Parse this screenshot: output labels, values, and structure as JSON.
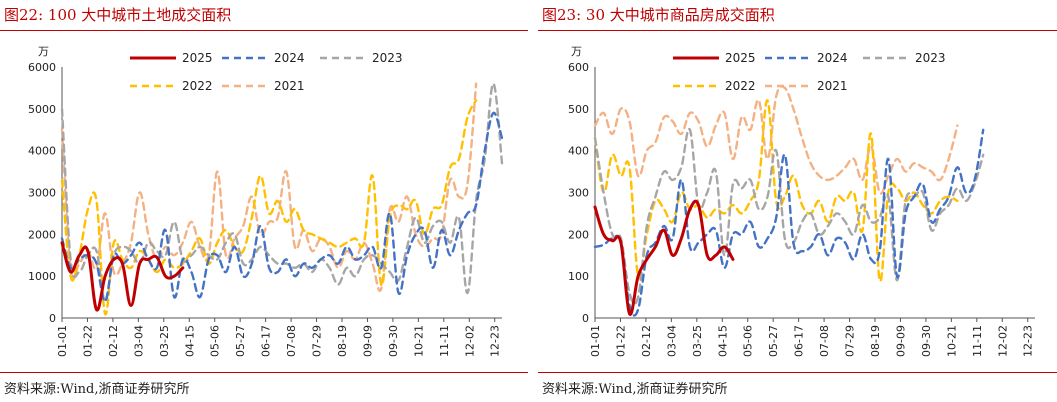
{
  "charts": [
    {
      "title": "图22:   100 大中城市土地成交面积",
      "source": "资料来源:Wind,浙商证券研究所"
    },
    {
      "title": "图23:   30 大中城市商品房成交面积",
      "source": "资料来源:Wind,浙商证券研究所"
    }
  ],
  "chart_data": [
    {
      "type": "line",
      "unit_label": "万",
      "ylim": [
        0,
        6000
      ],
      "yticks": [
        0,
        1000,
        2000,
        3000,
        4000,
        5000,
        6000
      ],
      "x_ticks": [
        "01-01",
        "01-22",
        "02-12",
        "03-04",
        "03-25",
        "04-15",
        "05-06",
        "05-27",
        "06-17",
        "07-08",
        "07-29",
        "08-19",
        "09-09",
        "09-30",
        "10-21",
        "11-11",
        "12-02",
        "12-23"
      ],
      "x_range_days": [
        0,
        363
      ],
      "legend_position": "top-center",
      "series": [
        {
          "name": "2025",
          "color": "#c00000",
          "dash": "",
          "width": 3,
          "values": [
            1800,
            1100,
            1500,
            1600,
            200,
            1000,
            1400,
            1300,
            300,
            1300,
            1400,
            1450,
            1000,
            1000,
            1200
          ]
        },
        {
          "name": "2024",
          "color": "#4472c4",
          "dash": "7,5",
          "width": 2.4,
          "values": [
            1900,
            1200,
            1400,
            1500,
            1300,
            400,
            1500,
            1300,
            1500,
            1800,
            1400,
            1200,
            2100,
            500,
            1400,
            1100,
            500,
            1400,
            1500,
            1100,
            1700,
            1000,
            1300,
            2200,
            1200,
            1100,
            1400,
            1000,
            1300,
            1200,
            1400,
            1500,
            1300,
            1700,
            1400,
            1500,
            1700,
            1200,
            2500,
            600,
            1500,
            2000,
            2100,
            1200,
            2100,
            1500,
            2100,
            2500,
            2700,
            4000,
            4900,
            4300
          ]
        },
        {
          "name": "2023",
          "color": "#a6a6a6",
          "dash": "7,5",
          "width": 2.4,
          "values": [
            5000,
            1400,
            1100,
            1500,
            1600,
            400,
            1500,
            1700,
            1600,
            1300,
            1800,
            1600,
            1500,
            2300,
            1400,
            1500,
            1700,
            1500,
            1400,
            1800,
            2000,
            1300,
            1400,
            1700,
            1500,
            1300,
            1300,
            1200,
            1300,
            1100,
            1400,
            1200,
            800,
            1200,
            1000,
            1400,
            1500,
            1300,
            1100,
            900,
            1700,
            2400,
            1800,
            2200,
            2300,
            1800,
            2400,
            600,
            2800,
            3800,
            5600,
            3700
          ]
        },
        {
          "name": "2022",
          "color": "#ffc000",
          "dash": "7,5",
          "width": 2.4,
          "values": [
            3300,
            1000,
            1500,
            2600,
            2800,
            100,
            1800,
            1400,
            1200,
            1600,
            1400,
            1100,
            1400,
            1200,
            1300,
            1600,
            1900,
            1300,
            1800,
            2100,
            1700,
            1600,
            2400,
            3400,
            2500,
            2800,
            2300,
            2600,
            2100,
            2000,
            1900,
            1800,
            1700,
            1800,
            1900,
            1800,
            3400,
            800,
            2400,
            2700,
            2600,
            2800,
            2000,
            2600,
            2700,
            3600,
            3800,
            4800,
            5200
          ]
        },
        {
          "name": "2021",
          "color": "#f4b183",
          "dash": "7,5",
          "width": 2.4,
          "values": [
            4500,
            1200,
            1300,
            1600,
            1200,
            2500,
            1100,
            1300,
            1800,
            3000,
            2000,
            1400,
            1700,
            1500,
            1800,
            2300,
            1700,
            1500,
            3500,
            1500,
            1900,
            2200,
            2900,
            2000,
            2300,
            2400,
            3500,
            1700,
            2100,
            1600,
            1900,
            1700,
            1200,
            1600,
            1400,
            1800,
            1300,
            700,
            2600,
            2300,
            2900,
            2000,
            1700,
            1900,
            2000,
            3300,
            2900,
            3200,
            5600
          ]
        }
      ]
    },
    {
      "type": "line",
      "unit_label": "万",
      "ylim": [
        0,
        600
      ],
      "yticks": [
        0,
        100,
        200,
        300,
        400,
        500,
        600
      ],
      "x_ticks": [
        "01-01",
        "01-22",
        "02-12",
        "03-04",
        "03-25",
        "04-15",
        "05-06",
        "05-27",
        "06-17",
        "07-08",
        "07-29",
        "08-19",
        "09-09",
        "09-30",
        "10-21",
        "11-11",
        "12-02",
        "12-23"
      ],
      "x_range_days": [
        0,
        363
      ],
      "legend_position": "top-center",
      "series": [
        {
          "name": "2025",
          "color": "#c00000",
          "dash": "",
          "width": 3,
          "values": [
            265,
            200,
            185,
            180,
            10,
            100,
            140,
            170,
            210,
            150,
            190,
            260,
            270,
            150,
            150,
            170,
            140
          ]
        },
        {
          "name": "2024",
          "color": "#4472c4",
          "dash": "7,5",
          "width": 2.4,
          "values": [
            170,
            175,
            190,
            180,
            30,
            20,
            150,
            180,
            220,
            190,
            330,
            170,
            180,
            200,
            210,
            120,
            200,
            200,
            230,
            170,
            190,
            240,
            390,
            180,
            160,
            170,
            200,
            150,
            190,
            180,
            140,
            200,
            140,
            160,
            380,
            100,
            250,
            290,
            320,
            230,
            260,
            290,
            360,
            300,
            330,
            450
          ]
        },
        {
          "name": "2023",
          "color": "#a6a6a6",
          "dash": "7,5",
          "width": 2.4,
          "values": [
            430,
            300,
            200,
            190,
            60,
            50,
            220,
            290,
            350,
            330,
            360,
            450,
            270,
            300,
            350,
            150,
            320,
            310,
            330,
            260,
            290,
            400,
            190,
            180,
            230,
            250,
            200,
            220,
            250,
            230,
            200,
            270,
            230,
            240,
            290,
            90,
            280,
            290,
            300,
            210,
            250,
            270,
            310,
            280,
            320,
            390
          ]
        },
        {
          "name": "2022",
          "color": "#ffc000",
          "dash": "7,5",
          "width": 2.4,
          "values": [
            430,
            300,
            390,
            340,
            360,
            100,
            200,
            280,
            260,
            230,
            300,
            260,
            270,
            240,
            260,
            250,
            270,
            250,
            280,
            330,
            520,
            280,
            290,
            340,
            270,
            250,
            280,
            230,
            290,
            280,
            300,
            210,
            440,
            90,
            300,
            310,
            280,
            300,
            270,
            250,
            280,
            290,
            280
          ]
        },
        {
          "name": "2021",
          "color": "#f4b183",
          "dash": "7,5",
          "width": 2.4,
          "values": [
            460,
            490,
            440,
            500,
            470,
            340,
            400,
            420,
            480,
            470,
            440,
            490,
            470,
            410,
            460,
            490,
            380,
            480,
            450,
            520,
            380,
            530,
            550,
            500,
            430,
            370,
            340,
            330,
            340,
            360,
            380,
            330,
            410,
            300,
            340,
            380,
            350,
            370,
            360,
            350,
            330,
            380,
            460
          ]
        }
      ]
    }
  ]
}
